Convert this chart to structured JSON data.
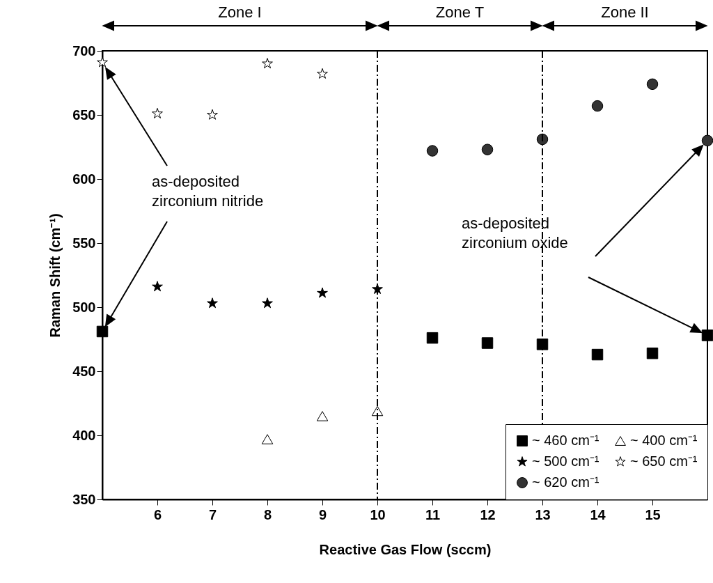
{
  "chart_data": {
    "type": "scatter",
    "xlabel": "Reactive Gas Flow (sccm)",
    "ylabel": "Raman Shift (cm⁻¹)",
    "xlim": [
      5,
      16
    ],
    "xticks": [
      6,
      7,
      8,
      9,
      10,
      11,
      12,
      13,
      14,
      15
    ],
    "ylim": [
      350,
      700
    ],
    "yticks": [
      350,
      400,
      450,
      500,
      550,
      600,
      650,
      700
    ],
    "grid": false,
    "legend": "bottom right",
    "series": [
      {
        "name": "~ 460 cm⁻¹",
        "color": "#000000",
        "marker": "square",
        "x": [
          5,
          11,
          12,
          13,
          14,
          15,
          16
        ],
        "values": [
          481,
          476,
          472,
          471,
          463,
          464,
          478
        ]
      },
      {
        "name": "~ 500 cm⁻¹",
        "color": "#000000",
        "marker": "star",
        "x": [
          6,
          7,
          8,
          9,
          10
        ],
        "values": [
          516,
          503,
          503,
          511,
          514
        ]
      },
      {
        "name": "~ 620 cm⁻¹",
        "color": "#333333",
        "marker": "circle",
        "x": [
          11,
          12,
          13,
          14,
          15,
          16
        ],
        "values": [
          622,
          623,
          631,
          657,
          674,
          630
        ]
      },
      {
        "name": "~ 400 cm⁻¹",
        "color": "#ffffff",
        "marker": "triangle",
        "x": [
          8,
          9,
          10
        ],
        "values": [
          397,
          415,
          419
        ]
      },
      {
        "name": "~ 650 cm⁻¹",
        "color": "#ffffff",
        "marker": "star",
        "x": [
          5,
          6,
          7,
          8,
          9
        ],
        "values": [
          691,
          651,
          650,
          690,
          682
        ]
      }
    ],
    "ref_lines": [
      {
        "axis": "x",
        "value": 10,
        "line_style": "dashed",
        "color": "#000000"
      },
      {
        "axis": "x",
        "value": 13,
        "line_style": "dashed",
        "color": "#000000"
      }
    ],
    "annotations": [
      "Zone I",
      "Zone T",
      "Zone II",
      "as-deposited\nzirconium nitride",
      "as-deposited\nzirconium oxide"
    ]
  }
}
